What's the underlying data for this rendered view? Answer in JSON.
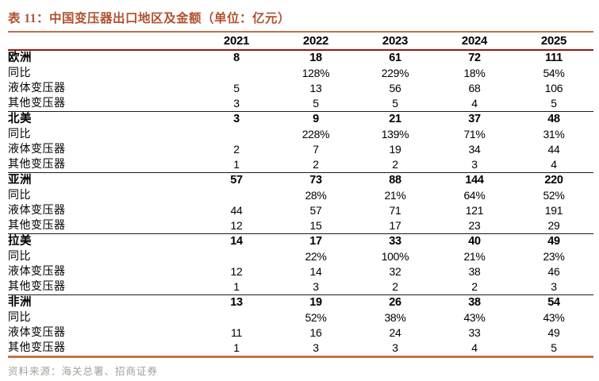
{
  "header": {
    "title": "表 11：中国变压器出口地区及金额（单位：亿元）"
  },
  "chart_data": {
    "type": "table",
    "title": "表 11：中国变压器出口地区及金额（单位：亿元）",
    "year_columns": [
      "2021",
      "2022",
      "2023",
      "2024",
      "2025"
    ],
    "sections": [
      {
        "region": "欧洲",
        "totals": [
          "8",
          "18",
          "61",
          "72",
          "111"
        ],
        "rows": [
          {
            "label": "同比",
            "values": [
              "",
              "128%",
              "229%",
              "18%",
              "54%"
            ]
          },
          {
            "label": "液体变压器",
            "values": [
              "5",
              "13",
              "56",
              "68",
              "106"
            ]
          },
          {
            "label": "其他变压器",
            "values": [
              "3",
              "5",
              "5",
              "4",
              "5"
            ]
          }
        ]
      },
      {
        "region": "北美",
        "totals": [
          "3",
          "9",
          "21",
          "37",
          "48"
        ],
        "rows": [
          {
            "label": "同比",
            "values": [
              "",
              "228%",
              "139%",
              "71%",
              "31%"
            ]
          },
          {
            "label": "液体变压器",
            "values": [
              "2",
              "7",
              "19",
              "34",
              "44"
            ]
          },
          {
            "label": "其他变压器",
            "values": [
              "1",
              "2",
              "2",
              "3",
              "4"
            ]
          }
        ]
      },
      {
        "region": "亚洲",
        "totals": [
          "57",
          "73",
          "88",
          "144",
          "220"
        ],
        "rows": [
          {
            "label": "同比",
            "values": [
              "",
              "28%",
              "21%",
              "64%",
              "52%"
            ]
          },
          {
            "label": "液体变压器",
            "values": [
              "44",
              "57",
              "71",
              "121",
              "191"
            ]
          },
          {
            "label": "其他变压器",
            "values": [
              "12",
              "15",
              "17",
              "23",
              "29"
            ]
          }
        ]
      },
      {
        "region": "拉美",
        "totals": [
          "14",
          "17",
          "33",
          "40",
          "49"
        ],
        "rows": [
          {
            "label": "同比",
            "values": [
              "",
              "22%",
              "100%",
              "21%",
              "23%"
            ]
          },
          {
            "label": "液体变压器",
            "values": [
              "12",
              "14",
              "32",
              "38",
              "46"
            ]
          },
          {
            "label": "其他变压器",
            "values": [
              "1",
              "3",
              "2",
              "2",
              "3"
            ]
          }
        ]
      },
      {
        "region": "非洲",
        "totals": [
          "13",
          "19",
          "26",
          "38",
          "54"
        ],
        "rows": [
          {
            "label": "同比",
            "values": [
              "",
              "52%",
              "38%",
              "43%",
              "43%"
            ]
          },
          {
            "label": "液体变压器",
            "values": [
              "11",
              "16",
              "24",
              "33",
              "49"
            ]
          },
          {
            "label": "其他变压器",
            "values": [
              "1",
              "3",
              "3",
              "4",
              "5"
            ]
          }
        ]
      }
    ]
  },
  "footer": {
    "source": "资料来源：海关总署、招商证券"
  },
  "colors": {
    "title_text": "#b0512f",
    "title_rule": "#c2714c",
    "header_rule": "#951414",
    "section_rule": "#1c1c1c",
    "bottom_rule": "#c96e4b",
    "source_text": "#a5a09a"
  }
}
